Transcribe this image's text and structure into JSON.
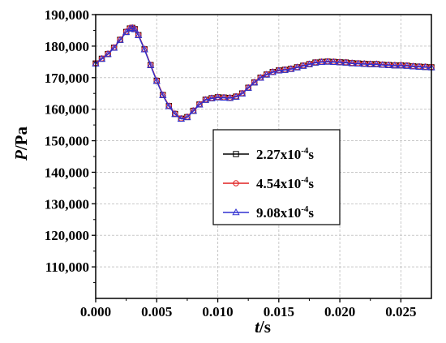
{
  "chart_data": {
    "type": "line",
    "xlabel": {
      "var": "t",
      "unit": "/s"
    },
    "ylabel": {
      "var": "P",
      "unit": "/Pa"
    },
    "xlim": [
      0,
      0.0275
    ],
    "ylim": [
      100000,
      190000
    ],
    "xticks": [
      "0.000",
      "0.005",
      "0.010",
      "0.015",
      "0.020",
      "0.025"
    ],
    "xtick_values": [
      0,
      0.005,
      0.01,
      0.015,
      0.02,
      0.025
    ],
    "yticks": [
      "110,000",
      "120,000",
      "130,000",
      "140,000",
      "150,000",
      "160,000",
      "170,000",
      "180,000",
      "190,000"
    ],
    "ytick_values": [
      110000,
      120000,
      130000,
      140000,
      150000,
      160000,
      170000,
      180000,
      190000
    ],
    "grid": true,
    "legend_position": "center-right",
    "x": [
      0.0,
      0.0005,
      0.001,
      0.0015,
      0.002,
      0.0025,
      0.0028,
      0.003,
      0.0032,
      0.0035,
      0.004,
      0.0045,
      0.005,
      0.0055,
      0.006,
      0.0065,
      0.007,
      0.0075,
      0.008,
      0.0085,
      0.009,
      0.0095,
      0.01,
      0.0105,
      0.011,
      0.0115,
      0.012,
      0.0125,
      0.013,
      0.0135,
      0.014,
      0.0145,
      0.015,
      0.0155,
      0.016,
      0.0165,
      0.017,
      0.0175,
      0.018,
      0.0185,
      0.019,
      0.0195,
      0.02,
      0.0205,
      0.021,
      0.0215,
      0.022,
      0.0225,
      0.023,
      0.0235,
      0.024,
      0.0245,
      0.025,
      0.0255,
      0.026,
      0.0265,
      0.027,
      0.0275
    ],
    "series": [
      {
        "name_base": "2.27x10",
        "name_exp": "-4",
        "name_unit": "s",
        "color": "#000000",
        "marker": "square",
        "values": [
          174500,
          176000,
          177500,
          179500,
          182000,
          184500,
          185600,
          185800,
          185400,
          183500,
          179000,
          174000,
          169000,
          164500,
          161000,
          158500,
          157000,
          157500,
          159500,
          161500,
          163000,
          163500,
          163800,
          163700,
          163600,
          164000,
          165000,
          166800,
          168500,
          170000,
          171000,
          171800,
          172300,
          172500,
          172800,
          173300,
          173800,
          174300,
          174800,
          175000,
          175100,
          175000,
          174900,
          174800,
          174600,
          174500,
          174400,
          174300,
          174300,
          174100,
          174000,
          173900,
          173900,
          173800,
          173600,
          173500,
          173400,
          173300
        ]
      },
      {
        "name_base": "4.54x10",
        "name_exp": "-4",
        "name_unit": "s",
        "color": "#e02020",
        "marker": "circle",
        "values": [
          174600,
          176100,
          177600,
          179600,
          182100,
          184600,
          185700,
          185900,
          185500,
          183600,
          179100,
          174100,
          169100,
          164600,
          161100,
          158600,
          157100,
          157600,
          159600,
          161600,
          163100,
          163600,
          163900,
          163800,
          163700,
          164100,
          165100,
          166900,
          168600,
          170100,
          171100,
          171900,
          172400,
          172600,
          172900,
          173400,
          173900,
          174400,
          174900,
          175100,
          175200,
          175100,
          175000,
          174900,
          174700,
          174600,
          174500,
          174400,
          174400,
          174200,
          174100,
          174000,
          174000,
          173900,
          173700,
          173600,
          173500,
          173400
        ]
      },
      {
        "name_base": "9.08x10",
        "name_exp": "-4",
        "name_unit": "s",
        "color": "#3030d0",
        "marker": "triangle",
        "values": [
          174400,
          175900,
          177400,
          179400,
          181900,
          184400,
          185500,
          185700,
          185300,
          183400,
          178900,
          173900,
          168900,
          164400,
          160900,
          158400,
          156900,
          157400,
          159400,
          161400,
          162900,
          163400,
          163700,
          163600,
          163500,
          163900,
          164900,
          166700,
          168400,
          169900,
          170900,
          171700,
          172200,
          172400,
          172700,
          173200,
          173700,
          174200,
          174700,
          174900,
          175000,
          174900,
          174800,
          174700,
          174500,
          174400,
          174300,
          174200,
          174200,
          174000,
          173900,
          173800,
          173800,
          173700,
          173500,
          173400,
          173300,
          173200
        ]
      }
    ]
  }
}
